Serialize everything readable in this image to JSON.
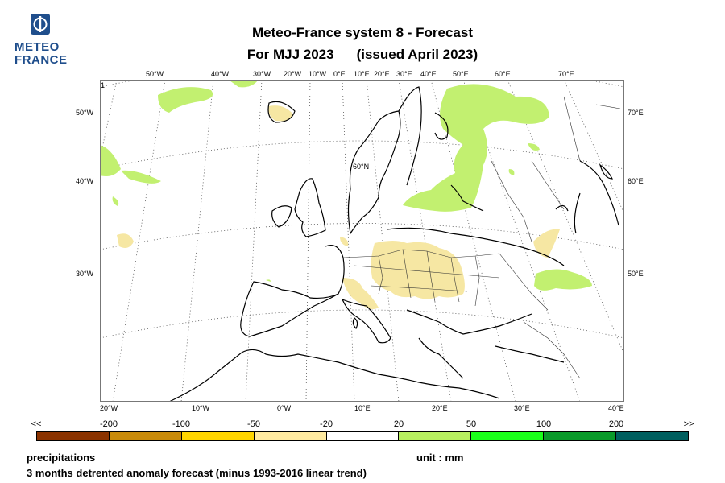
{
  "logo": {
    "line1": "METEO",
    "line2": "FRANCE"
  },
  "title": {
    "line1": "Meteo-France system 8  -  Forecast",
    "period": "For MJJ 2023",
    "issued": "(issued April 2023)"
  },
  "map": {
    "projection": "conic",
    "region": "Europe and North Atlantic",
    "top_longitude_labels": [
      "50°W",
      "40°W",
      "30°W",
      "20°W",
      "10°W",
      "0°E",
      "10°E",
      "20°E",
      "30°E",
      "40°E",
      "50°E",
      "60°E",
      "70°E"
    ],
    "left_labels": [
      "50°W",
      "40°W",
      "30°W"
    ],
    "right_labels": [
      "70°E",
      "60°E",
      "50°E"
    ],
    "bottom_labels": [
      "20°W",
      "10°W",
      "0°W",
      "10°E",
      "20°E",
      "30°E",
      "40°E"
    ],
    "inner_label": "60°N",
    "corner_mark": "1",
    "colors": {
      "dry_light": "#f5e49b",
      "wet_light": "#b8f060",
      "coast": "#000000",
      "border": "#333333",
      "grid": "#555555"
    }
  },
  "legend": {
    "left_end": "<<",
    "right_end": ">>",
    "labels": [
      "-200",
      "-100",
      "-50",
      "-20",
      "20",
      "50",
      "100",
      "200"
    ],
    "colors": [
      "#8b3300",
      "#c98b0a",
      "#ffd500",
      "#ffeaa0",
      "#ffffff",
      "#b8f060",
      "#1aff1a",
      "#0a9a2a",
      "#005f5f"
    ]
  },
  "footer": {
    "variable": "precipitations",
    "unit": "unit : mm",
    "description": "3 months detrented anomaly forecast (minus 1993-2016 linear trend)"
  }
}
